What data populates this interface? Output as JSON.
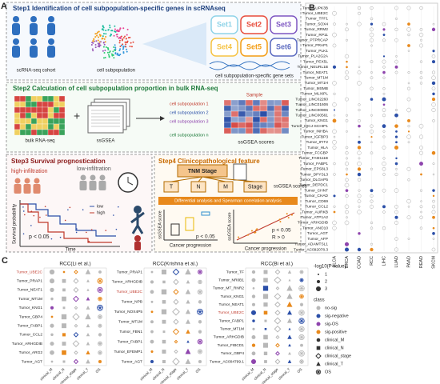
{
  "panel_a": {
    "label": "A",
    "step1": {
      "title": "Step1 Identification of cell subpopulation-specific genes in scRNAseq",
      "cohort": "scRNA-seq cohort",
      "subpopulation": "cell subpopulation",
      "sets": [
        "Set1",
        "Set2",
        "Set3",
        "Set4",
        "Set5",
        "Set6"
      ],
      "gene_sets": "cell subpopulation-specific gene sets"
    },
    "step2": {
      "title": "Step2 Calculation of cell subpopulation proportion in bulk RNA-seq",
      "bulk": "bulk RNA-seq",
      "method": "ssGSEA",
      "subpopulations": [
        "cell subpopulation 1",
        "cell subpopulation 2",
        "cell subpopulation 3",
        "cell subpopulation n"
      ],
      "sample": "Sample",
      "scores": "ssGSEA scores"
    },
    "step3": {
      "title": "Step3 Survival prognostication",
      "high": "high-infiltration",
      "low": "low-infiltration",
      "y_label": "Survival probability",
      "x_label": "Time",
      "p": "p < 0.05",
      "legend": [
        "low",
        "high"
      ]
    },
    "step4": {
      "title": "Step4 Clinicopathological feature",
      "tnm": "TNM Stage",
      "stages": [
        "T",
        "N",
        "M",
        "Stage"
      ],
      "scores": "ssGSEA scores",
      "analysis": "Differential analysis and Spearman correlation analysis",
      "y_label": "ssGSEA score",
      "x_label": "Cancer progression",
      "p": "p < 0.05",
      "r": "R > 0"
    }
  },
  "panel_b": {
    "label": "B",
    "genes": [
      "Tumor_UPK3B",
      "Tumor_UBE2C",
      "Tumor_TFF1",
      "Tumor_SOX4",
      "Tumor_RRM2",
      "Tumor_RP11",
      "Tumor_PTPRCAP",
      "Tumor_PRAP1",
      "Tumor_PLK1",
      "Tumor_PLA2G2A",
      "Tumor_PEX5L",
      "Tumor_NEURL1B",
      "Tumor_NEAT1",
      "Tumor_MT1M",
      "Tumor_MT1H",
      "Tumor_MSMB",
      "Tumor_MLXIPL",
      "Tumor_LINC02260",
      "Tumor_LINC01606",
      "Tumor_LINC00906",
      "Tumor_LINC00561",
      "Tumor_KNG1",
      "Tumor_IQCJ-SCHIP1",
      "Tumor_INHBA",
      "Tumor_IGFBP3",
      "Tumor_IFIT2",
      "Tumor_HLA",
      "Tumor_FCGBP",
      "Tumor_FAM111B",
      "Tumor_FABP1",
      "Tumor_EPS8L3",
      "Tumor_DPYSL3",
      "Tumor_DLGAP5",
      "Tumor_DEPDC1",
      "Tumor_CHNT",
      "Tumor_CHAD",
      "Tumor_CD69",
      "Tumor_CCL2",
      "Tumor_AURKB",
      "Tumor_ATP1A2",
      "Tumor_ARHGDIB",
      "Tumor_ANO10",
      "Tumor_AGT",
      "Tumor_AFP",
      "Tumor_ADAMTSL1",
      "Tumor_AC092078.3"
    ],
    "cancers": [
      "BLCA",
      "BRCA",
      "COAD",
      "RCC",
      "LIHC",
      "LUAD",
      "PAAD",
      "READ",
      "SKCM"
    ]
  },
  "panel_c": {
    "label": "C",
    "columns": [
      "clinical_M",
      "clinical_N",
      "clinical_stage",
      "clinical_T",
      "OS"
    ],
    "plots": [
      {
        "title": "RCC(Li et al.)",
        "highlight": 0,
        "genes": [
          "Tumor_UBE2C",
          "Tumor_PRAP1",
          "Tumor_NEAT1",
          "Tumor_MT1M",
          "Tumor_KNG1",
          "Tumor_GBP4",
          "Tumor_FABP1",
          "Tumor_CCL2",
          "Tumor_ARHGDIB",
          "Tumor_ARG2",
          "Tumor_AGT"
        ]
      },
      {
        "title": "RCC(Krishna et al.)",
        "highlight": 2,
        "genes": [
          "Tumor_PRAP1",
          "Tumor_ARHGDIB",
          "Tumor_UBE2C",
          "Tumor_NPB",
          "Tumor_NOX4P5",
          "Tumor_MT1M",
          "Tumor_FBN1",
          "Tumor_FABP1",
          "Tumor_EFEMP1",
          "Tumor_AGT"
        ]
      },
      {
        "title": "RCC(Bi et al.)",
        "highlight": 5,
        "genes": [
          "Tumor_TF",
          "Tumor_NR0B1",
          "Tumor_MT_RNR2",
          "Tumor_KNG1",
          "Tumor_NEAT1",
          "Tumor_UBE2C",
          "Tumor_FABP1",
          "Tumor_MT1M",
          "Tumor_ARHGDIB",
          "Tumor_FIBCD1",
          "Tumor_GBP4",
          "Tumor_AC004799.1"
        ]
      }
    ],
    "legend": {
      "size_title": "-log10(P value)",
      "sizes": [
        1,
        2,
        3
      ],
      "class_title": "class",
      "classes": [
        "no-sig",
        "sig-negative",
        "sig-OS",
        "sig-positive",
        "clinical_M",
        "clinical_N",
        "clinical_stage",
        "clinical_T",
        "OS"
      ],
      "class_colors": [
        "#b8b8b8",
        "#2b4fa8",
        "#8e44ad",
        "#e8891c"
      ]
    }
  }
}
